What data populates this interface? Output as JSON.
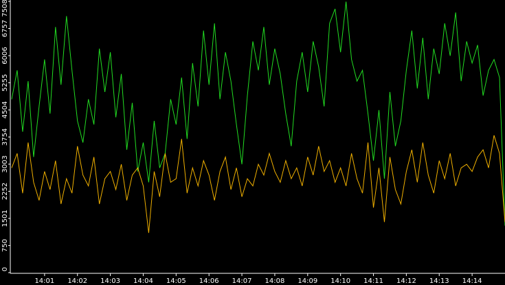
{
  "chart_data": {
    "type": "line",
    "categories": [
      null,
      null,
      null,
      null,
      null,
      null,
      "14:01",
      null,
      null,
      null,
      null,
      null,
      "14:02",
      null,
      null,
      null,
      null,
      null,
      "14:03",
      null,
      null,
      null,
      null,
      null,
      "14:04",
      null,
      null,
      null,
      null,
      null,
      "14:05",
      null,
      null,
      null,
      null,
      null,
      "14:06",
      null,
      null,
      null,
      null,
      null,
      "14:07",
      null,
      null,
      null,
      null,
      null,
      "14:08",
      null,
      null,
      null,
      null,
      null,
      "14:09",
      null,
      null,
      null,
      null,
      null,
      "14:10",
      null,
      null,
      null,
      null,
      null,
      "14:11",
      null,
      null,
      null,
      null,
      null,
      "14:12",
      null,
      null,
      null,
      null,
      null,
      "14:13",
      null,
      null,
      null,
      null,
      null,
      "14:14",
      null,
      null,
      null,
      null,
      null,
      null
    ],
    "series": [
      {
        "color": "#22dd22",
        "values": [
          4800,
          5600,
          3900,
          5300,
          3200,
          4600,
          5900,
          4400,
          6800,
          5200,
          7100,
          5600,
          4200,
          3600,
          4800,
          4100,
          6200,
          5000,
          6100,
          4300,
          5500,
          3400,
          4700,
          2800,
          3600,
          2500,
          4200,
          2900,
          3300,
          4800,
          4100,
          5400,
          3700,
          5800,
          4600,
          6700,
          5200,
          6900,
          4800,
          6100,
          5300,
          4100,
          3000,
          4900,
          6400,
          5600,
          6800,
          5200,
          6200,
          5500,
          4400,
          3500,
          5300,
          6100,
          5000,
          6400,
          5700,
          4600,
          6900,
          7300,
          6100,
          7500,
          5900,
          5300,
          5600,
          4400,
          3100,
          4500,
          2600,
          5000,
          3500,
          4200,
          5600,
          6700,
          5100,
          6500,
          4800,
          6200,
          5500,
          6900,
          6000,
          7200,
          5300,
          6400,
          5800,
          6300,
          4900,
          5600,
          5900,
          5400,
          1300
        ]
      },
      {
        "color": "#f0b000",
        "values": [
          2900,
          3300,
          2200,
          3600,
          2500,
          2000,
          2800,
          2300,
          3100,
          1900,
          2600,
          2200,
          3500,
          2700,
          2400,
          3200,
          1900,
          2600,
          2800,
          2300,
          3000,
          2000,
          2700,
          2900,
          2400,
          1100,
          2800,
          2100,
          3300,
          2500,
          2600,
          3700,
          2200,
          2900,
          2400,
          3100,
          2700,
          2000,
          2800,
          3200,
          2300,
          2900,
          2100,
          2600,
          2400,
          3000,
          2700,
          3300,
          2800,
          2500,
          3100,
          2600,
          2900,
          2400,
          3200,
          2700,
          3500,
          2800,
          3100,
          2500,
          2900,
          2400,
          3300,
          2600,
          2200,
          3600,
          1800,
          2900,
          1400,
          3200,
          2300,
          1900,
          2800,
          3400,
          2500,
          3600,
          2700,
          2200,
          3100,
          2600,
          3300,
          2400,
          2900,
          3000,
          2800,
          3200,
          3400,
          2900,
          3800,
          3300,
          1400
        ]
      }
    ],
    "ylim": [
      0,
      7508
    ],
    "yticks": [
      0,
      750,
      1501,
      2252,
      3003,
      3754,
      4504,
      5255,
      6006,
      6757,
      7508
    ]
  }
}
